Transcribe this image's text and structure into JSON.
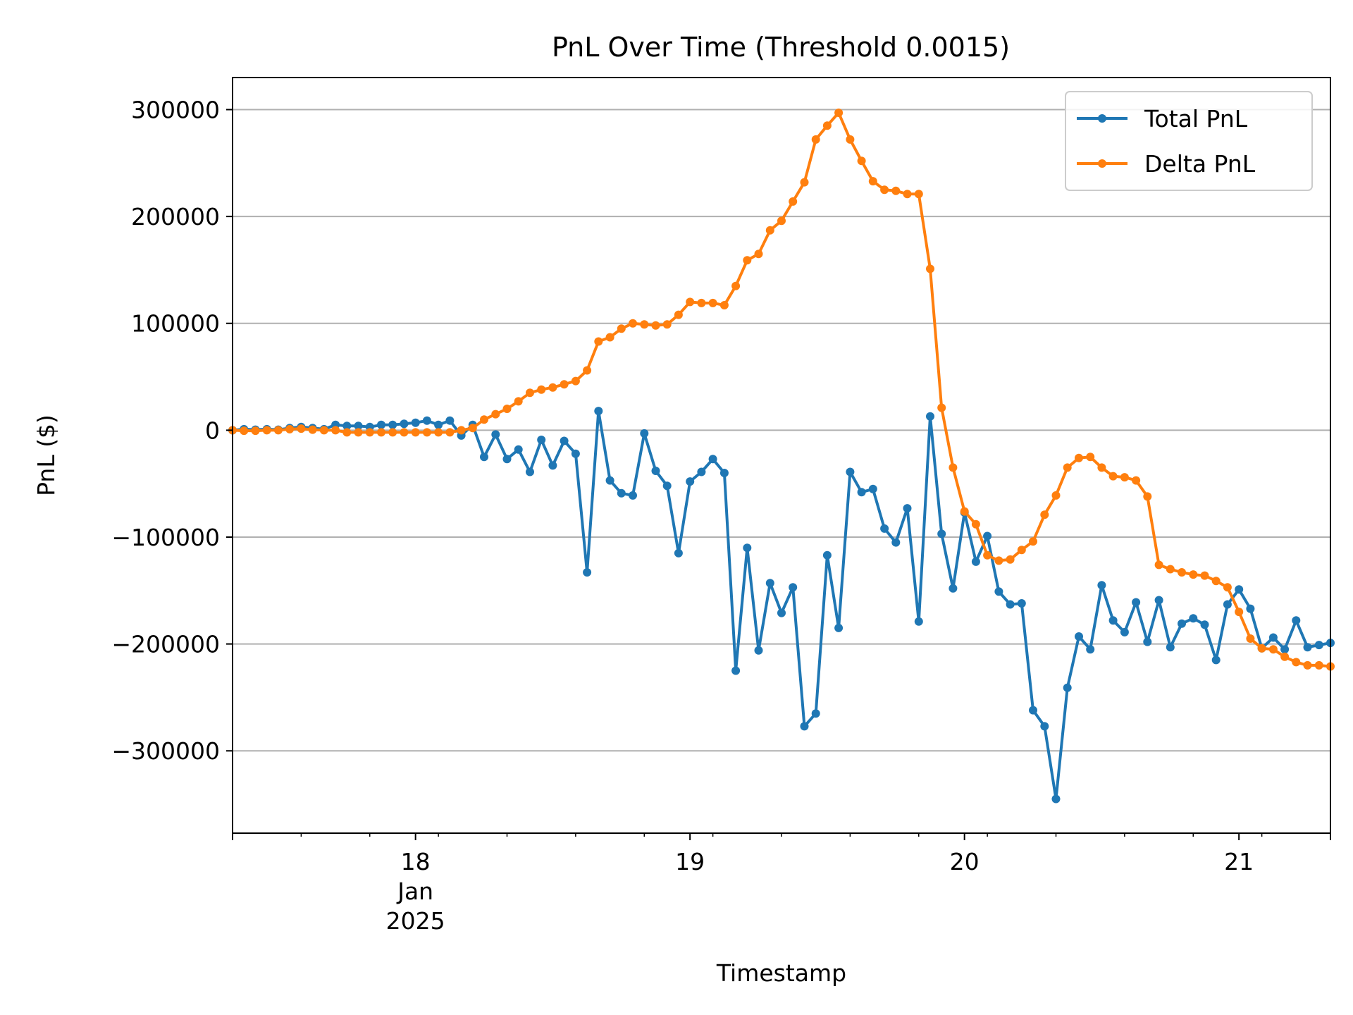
{
  "chart_data": {
    "type": "line",
    "title": "PnL Over Time (Threshold 0.0015)",
    "xlabel": "Timestamp",
    "ylabel": "PnL ($)",
    "x_start": "2025-01-17T08:00",
    "x_step_hours": 1,
    "xlim": [
      "2025-01-17T08:00",
      "2025-01-21T08:00"
    ],
    "ylim": [
      -377000,
      330000
    ],
    "yticks": [
      {
        "value": 300000,
        "label": "300000"
      },
      {
        "value": 200000,
        "label": "200000"
      },
      {
        "value": 100000,
        "label": "100000"
      },
      {
        "value": 0,
        "label": "0"
      },
      {
        "value": -100000,
        "label": "−100000"
      },
      {
        "value": -200000,
        "label": "−200000"
      },
      {
        "value": -300000,
        "label": "−300000"
      }
    ],
    "xticks": [
      {
        "value": "2025-01-18T00:00",
        "lines": [
          "18",
          "Jan",
          "2025"
        ]
      },
      {
        "value": "2025-01-19T00:00",
        "lines": [
          "19"
        ]
      },
      {
        "value": "2025-01-20T00:00",
        "lines": [
          "20"
        ]
      },
      {
        "value": "2025-01-21T00:00",
        "lines": [
          "21"
        ]
      }
    ],
    "grid": "y",
    "legend_position": "top-right",
    "series": [
      {
        "name": "Total PnL",
        "color": "#1f77b4",
        "marker": "circle",
        "values": [
          0,
          1000,
          500,
          1000,
          500,
          2000,
          3000,
          2000,
          1000,
          5000,
          4000,
          4000,
          3000,
          5000,
          5000,
          6000,
          7000,
          9000,
          5000,
          9000,
          -5000,
          5000,
          -25000,
          -4000,
          -27000,
          -18000,
          -39000,
          -9000,
          -33000,
          -10000,
          -22000,
          -133000,
          18000,
          -47000,
          -59000,
          -61000,
          -3000,
          -38000,
          -52000,
          -115000,
          -48000,
          -39000,
          -27000,
          -40000,
          -225000,
          -110000,
          -206000,
          -143000,
          -171000,
          -147000,
          -277000,
          -265000,
          -117000,
          -185000,
          -39000,
          -58000,
          -55000,
          -92000,
          -105000,
          -73000,
          -179000,
          13000,
          -97000,
          -148000,
          -77000,
          -123000,
          -99000,
          -151000,
          -163000,
          -162000,
          -262000,
          -277000,
          -345000,
          -241000,
          -193000,
          -205000,
          -145000,
          -178000,
          -189000,
          -161000,
          -198000,
          -159000,
          -203000,
          -181000,
          -176000,
          -182000,
          -215000,
          -163000,
          -149000,
          -167000,
          -204000,
          -194000,
          -205000,
          -178000,
          -203000,
          -201000,
          -199000
        ]
      },
      {
        "name": "Delta PnL",
        "color": "#ff7f0e",
        "marker": "circle",
        "values": [
          0,
          -500,
          -500,
          0,
          0,
          1000,
          1500,
          500,
          0,
          0,
          -2000,
          -2000,
          -2000,
          -2000,
          -2000,
          -2000,
          -2000,
          -2000,
          -2000,
          -2000,
          0,
          2000,
          10000,
          15000,
          20000,
          27000,
          35000,
          38000,
          40000,
          43000,
          46000,
          56000,
          83000,
          87000,
          95000,
          100000,
          99000,
          98000,
          99000,
          108000,
          120000,
          119000,
          119000,
          117000,
          135000,
          159000,
          165000,
          187000,
          196000,
          214000,
          232000,
          272000,
          285000,
          297000,
          272000,
          252000,
          233000,
          225000,
          224000,
          221000,
          221000,
          151000,
          21000,
          -35000,
          -76000,
          -88000,
          -117000,
          -122000,
          -121000,
          -112000,
          -104000,
          -79000,
          -61000,
          -35000,
          -26000,
          -25000,
          -35000,
          -43000,
          -44000,
          -47000,
          -62000,
          -126000,
          -130000,
          -133000,
          -135000,
          -136000,
          -141000,
          -147000,
          -170000,
          -195000,
          -204000,
          -205000,
          -212000,
          -217000,
          -220000,
          -220000,
          -221000
        ]
      }
    ]
  }
}
